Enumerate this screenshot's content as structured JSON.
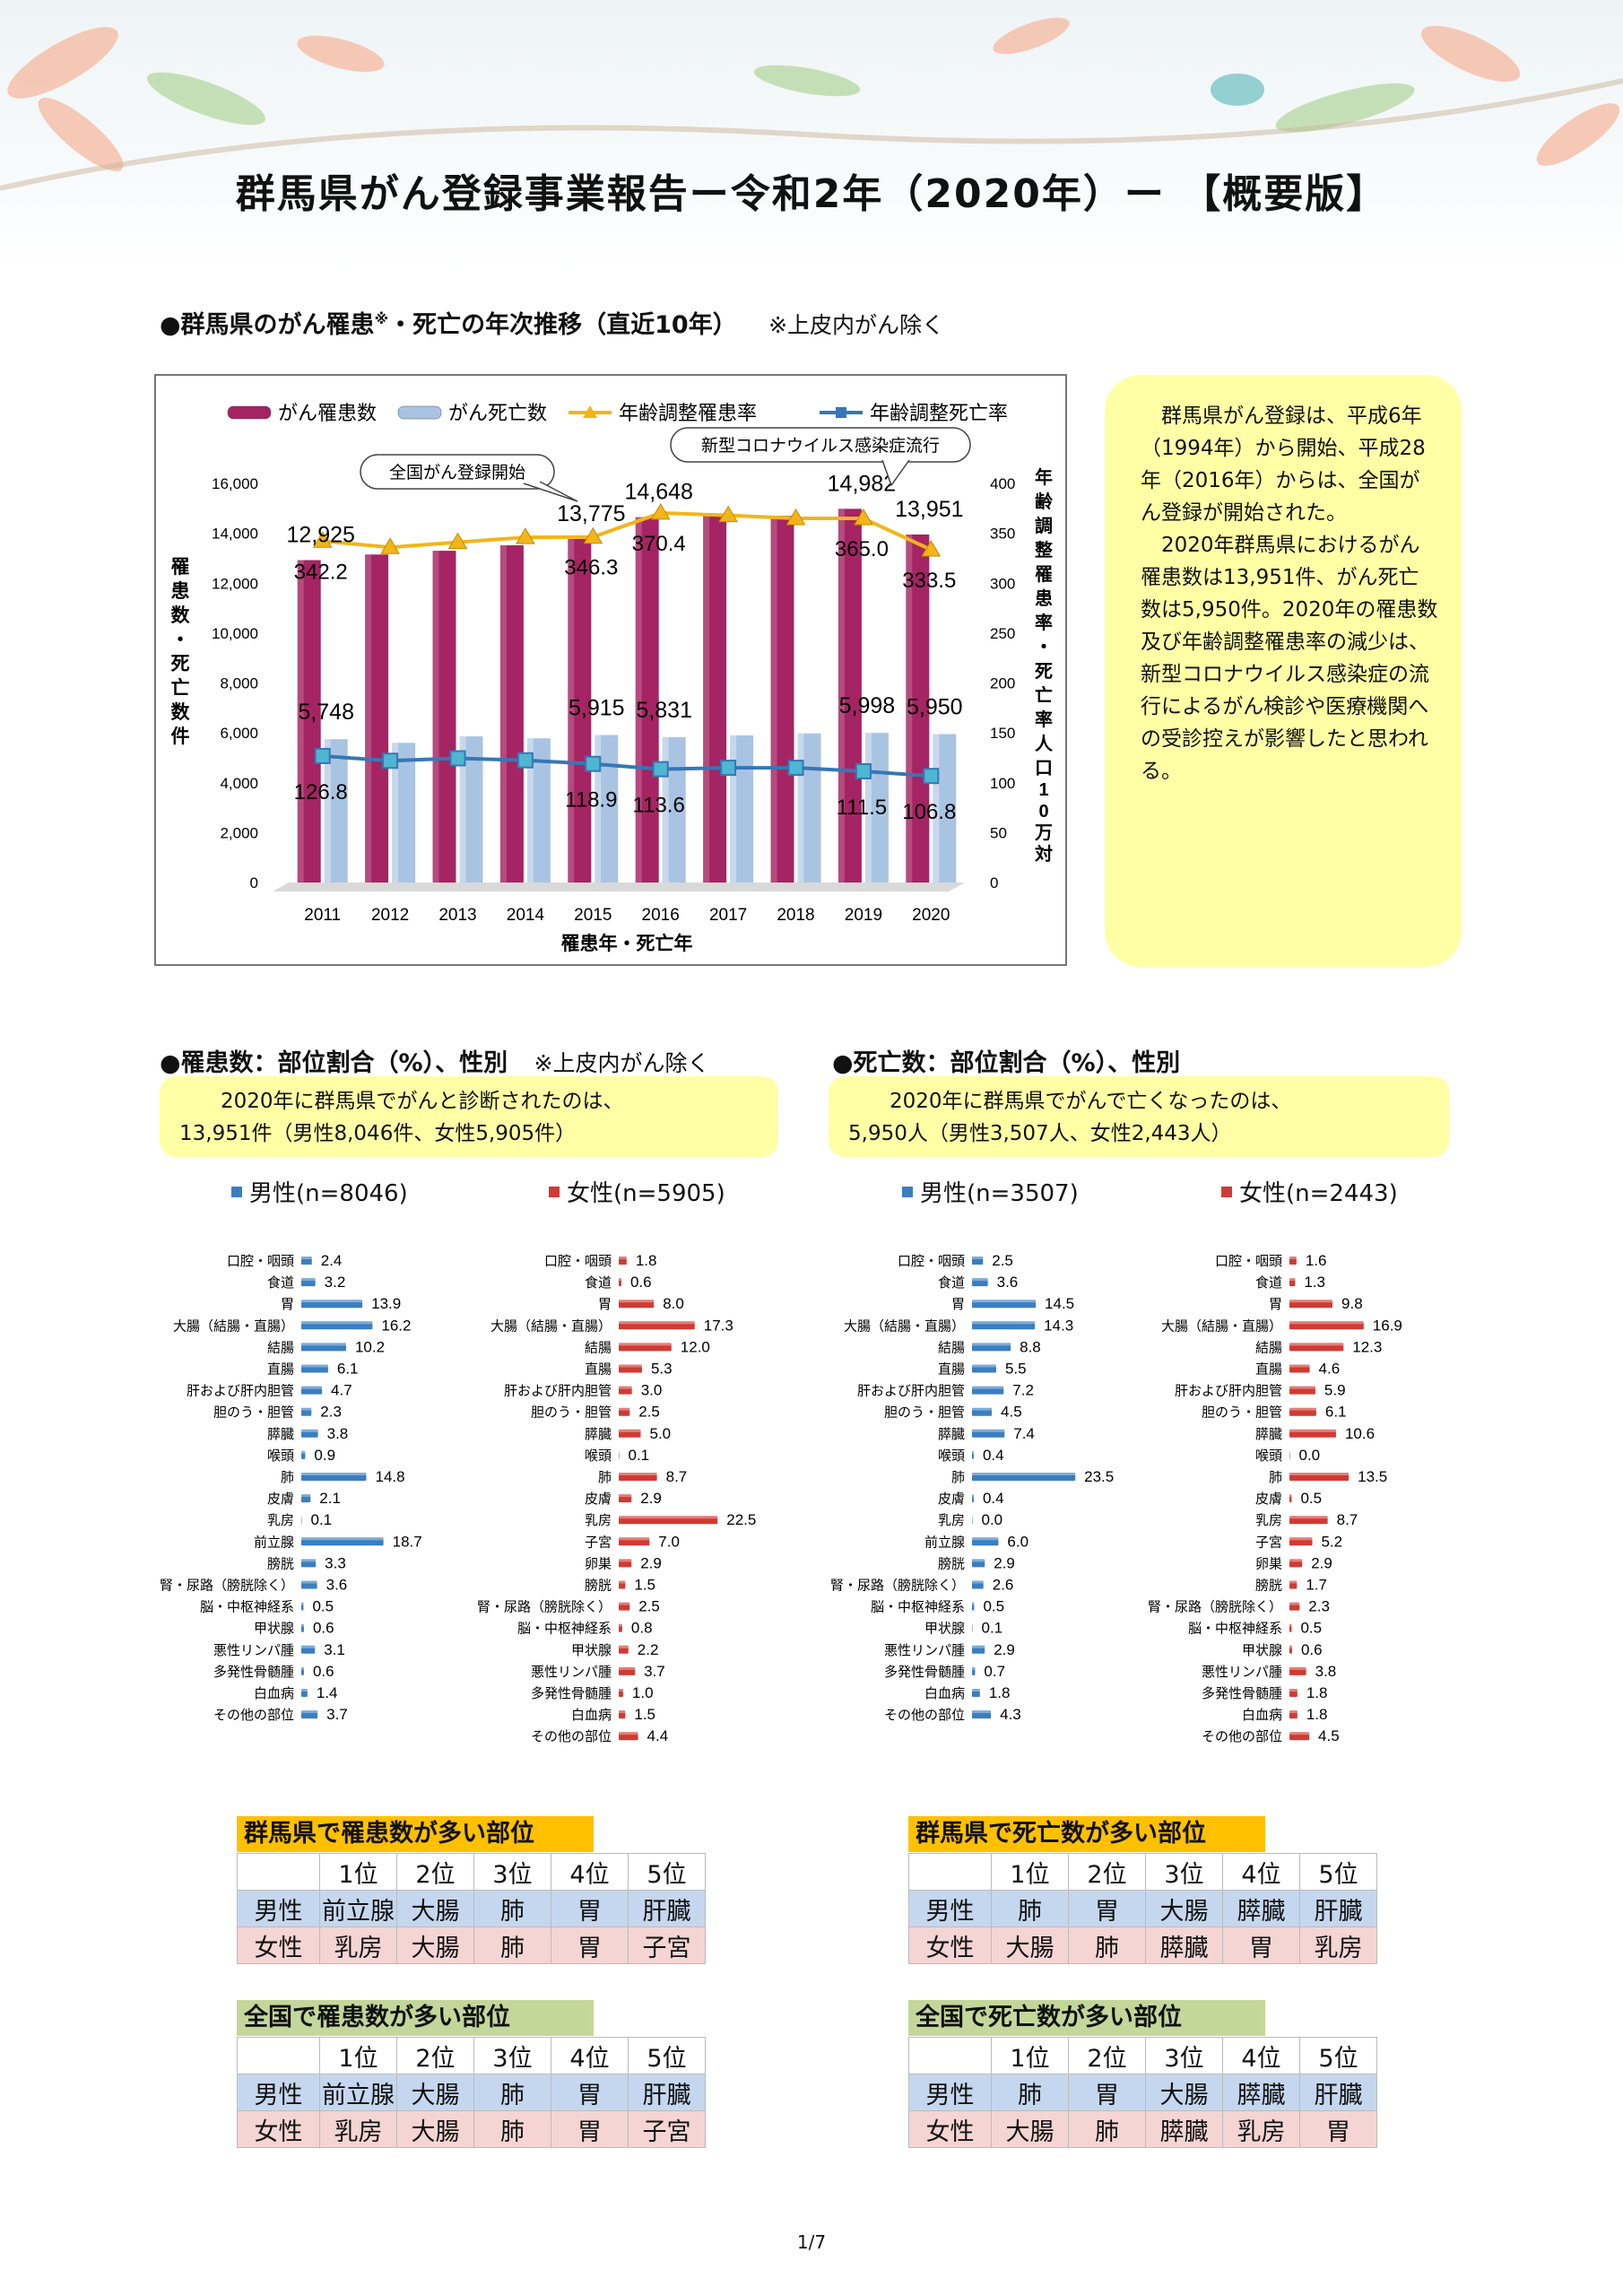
{
  "title": "群馬県がん登録事業報告ー令和2年（2020年）ー 【概要版】",
  "trend_section": {
    "heading_a": "●群馬県のがん罹患",
    "heading_sup": "※",
    "heading_b": "・死亡の年次推移（直近10年）",
    "heading_note": "※上皮内がん除く"
  },
  "colors": {
    "incidence_bar": "#a52463",
    "death_bar": "#a9c4e2",
    "age_adj_incidence": "#f2b519",
    "age_adj_death": "#3677b6",
    "male_bar": "#3a7ec2",
    "female_bar": "#d13a33",
    "note_bg": "#ffffa6",
    "rank_title_pref": "#ffc000",
    "rank_title_nat": "#c4d79b"
  },
  "side_note": {
    "p1": "群馬県がん登録は、平成6年（1994年）から開始、平成28年（2016年）からは、全国がん登録が開始された。",
    "p2": "2020年群馬県におけるがん罹患数は13,951件、がん死亡数は5,950件。2020年の罹患数及び年齢調整罹患率の減少は、新型コロナウイルス感染症の流行によるがん検診や医療機関への受診控えが影響したと思われる。"
  },
  "incidence_section": {
    "heading": "●罹患数：部位割合（%）、性別",
    "heading_note": "※上皮内がん除く",
    "callout_line1": "2020年に群馬県でがんと診断されたのは、",
    "callout_line2": "13,951件（男性8,046件、女性5,905件）",
    "legend_male": "男性(n=8046)",
    "legend_female": "女性(n=5905)"
  },
  "death_section": {
    "heading": "●死亡数：部位割合（%）、性別",
    "callout_line1": "2020年に群馬県でがんで亡くなったのは、",
    "callout_line2": "5,950人（男性3,507人、女性2,443人）",
    "legend_male": "男性(n=3507)",
    "legend_female": "女性(n=2443)"
  },
  "rank_tables": {
    "header_labels": [
      "1位",
      "2位",
      "3位",
      "4位",
      "5位"
    ],
    "male_label": "男性",
    "female_label": "女性",
    "pref_incidence": {
      "title": "群馬県で罹患数が多い部位",
      "male": [
        "前立腺",
        "大腸",
        "肺",
        "胃",
        "肝臓"
      ],
      "female": [
        "乳房",
        "大腸",
        "肺",
        "胃",
        "子宮"
      ]
    },
    "pref_death": {
      "title": "群馬県で死亡数が多い部位",
      "male": [
        "肺",
        "胃",
        "大腸",
        "膵臓",
        "肝臓"
      ],
      "female": [
        "大腸",
        "肺",
        "膵臓",
        "胃",
        "乳房"
      ]
    },
    "nat_incidence": {
      "title": "全国で罹患数が多い部位",
      "male": [
        "前立腺",
        "大腸",
        "肺",
        "胃",
        "肝臓"
      ],
      "female": [
        "乳房",
        "大腸",
        "肺",
        "胃",
        "子宮"
      ]
    },
    "nat_death": {
      "title": "全国で死亡数が多い部位",
      "male": [
        "肺",
        "胃",
        "大腸",
        "膵臓",
        "肝臓"
      ],
      "female": [
        "大腸",
        "肺",
        "膵臓",
        "乳房",
        "胃"
      ]
    }
  },
  "page_number": "1/7",
  "chart_data": [
    {
      "type": "bar",
      "categories": [
        "2011",
        "2012",
        "2013",
        "2014",
        "2015",
        "2016",
        "2017",
        "2018",
        "2019",
        "2020"
      ],
      "series": [
        {
          "name": "がん罹患数",
          "kind": "bar",
          "axis": "left",
          "values": [
            12925,
            13150,
            13300,
            13520,
            13775,
            14648,
            14780,
            14700,
            14982,
            13951
          ]
        },
        {
          "name": "がん死亡数",
          "kind": "bar",
          "axis": "left",
          "values": [
            5748,
            5600,
            5860,
            5780,
            5915,
            5831,
            5900,
            5980,
            5998,
            5950
          ]
        },
        {
          "name": "年齢調整罹患率",
          "kind": "line",
          "axis": "right",
          "values": [
            342.2,
            336,
            341,
            346,
            346.3,
            370.4,
            368,
            365,
            365.0,
            333.5
          ]
        },
        {
          "name": "年齢調整死亡率",
          "kind": "line",
          "axis": "right",
          "values": [
            126.8,
            122,
            124.5,
            122.5,
            118.9,
            113.6,
            115,
            115,
            111.5,
            106.8
          ]
        }
      ],
      "data_labels": {
        "incidence": [
          {
            "i": 0,
            "text": "12,925"
          },
          {
            "i": 4,
            "text": "13,775"
          },
          {
            "i": 5,
            "text": "14,648"
          },
          {
            "i": 8,
            "text": "14,982"
          },
          {
            "i": 9,
            "text": "13,951"
          }
        ],
        "death": [
          {
            "i": 0,
            "text": "5,748"
          },
          {
            "i": 4,
            "text": "5,915"
          },
          {
            "i": 5,
            "text": "5,831"
          },
          {
            "i": 8,
            "text": "5,998"
          },
          {
            "i": 9,
            "text": "5,950"
          }
        ],
        "inc_rate": [
          {
            "i": 0,
            "text": "342.2"
          },
          {
            "i": 4,
            "text": "346.3"
          },
          {
            "i": 5,
            "text": "370.4"
          },
          {
            "i": 8,
            "text": "365.0"
          },
          {
            "i": 9,
            "text": "333.5"
          }
        ],
        "death_rate": [
          {
            "i": 0,
            "text": "126.8"
          },
          {
            "i": 4,
            "text": "118.9"
          },
          {
            "i": 5,
            "text": "113.6"
          },
          {
            "i": 8,
            "text": "111.5"
          },
          {
            "i": 9,
            "text": "106.8"
          }
        ]
      },
      "ylim_left": [
        0,
        16000
      ],
      "ylim_right": [
        0,
        400
      ],
      "y_ticks_left": [
        "0",
        "2,000",
        "4,000",
        "6,000",
        "8,000",
        "10,000",
        "12,000",
        "14,000",
        "16,000"
      ],
      "y_ticks_right": [
        "0",
        "50",
        "100",
        "150",
        "200",
        "250",
        "300",
        "350",
        "400"
      ],
      "xlabel": "罹患年・死亡年",
      "ylabel_left": "罹患数・死亡数 件",
      "ylabel_right": "年齢調整罹患率・死亡率 人口10万対",
      "annotations": [
        {
          "text": "全国がん登録開始",
          "at": "2015"
        },
        {
          "text": "新型コロナウイルス感染症流行",
          "at": "2020"
        }
      ],
      "legend": "top"
    },
    {
      "type": "bar",
      "orientation": "horizontal",
      "title": "罹患数 部位割合（%） 男性(n=8046)",
      "categories": [
        "口腔・咽頭",
        "食道",
        "胃",
        "大腸（結腸・直腸）",
        "結腸",
        "直腸",
        "肝および肝内胆管",
        "胆のう・胆管",
        "膵臓",
        "喉頭",
        "肺",
        "皮膚",
        "乳房",
        "前立腺",
        "膀胱",
        "腎・尿路（膀胱除く）",
        "脳・中枢神経系",
        "甲状腺",
        "悪性リンパ腫",
        "多発性骨髄腫",
        "白血病",
        "その他の部位"
      ],
      "values": [
        2.4,
        3.2,
        13.9,
        16.2,
        10.2,
        6.1,
        4.7,
        2.3,
        3.8,
        0.9,
        14.8,
        2.1,
        0.1,
        18.7,
        3.3,
        3.6,
        0.5,
        0.6,
        3.1,
        0.6,
        1.4,
        3.7
      ],
      "labels": [
        "2.4",
        "3.2",
        "13.9",
        "16.2",
        "10.2",
        "6.1",
        "4.7",
        "2.3",
        "3.8",
        "0.9",
        "14.8",
        "2.1",
        "0.1",
        "18.7",
        "3.3",
        "3.6",
        "0.5",
        "0.6",
        "3.1",
        "0.6",
        "1.4",
        "3.7"
      ]
    },
    {
      "type": "bar",
      "orientation": "horizontal",
      "title": "罹患数 部位割合（%） 女性(n=5905)",
      "categories": [
        "口腔・咽頭",
        "食道",
        "胃",
        "大腸（結腸・直腸）",
        "結腸",
        "直腸",
        "肝および肝内胆管",
        "胆のう・胆管",
        "膵臓",
        "喉頭",
        "肺",
        "皮膚",
        "乳房",
        "子宮",
        "卵巣",
        "膀胱",
        "腎・尿路（膀胱除く）",
        "脳・中枢神経系",
        "甲状腺",
        "悪性リンパ腫",
        "多発性骨髄腫",
        "白血病",
        "その他の部位"
      ],
      "values": [
        1.8,
        0.6,
        8.0,
        17.3,
        12.0,
        5.3,
        3.0,
        2.5,
        5.0,
        0.1,
        8.7,
        2.9,
        22.5,
        7.0,
        2.9,
        1.5,
        2.5,
        0.8,
        2.2,
        3.7,
        1.0,
        1.5,
        4.4
      ],
      "labels": [
        "1.8",
        "0.6",
        "8.0",
        "17.3",
        "12.0",
        "5.3",
        "3.0",
        "2.5",
        "5.0",
        "0.1",
        "8.7",
        "2.9",
        "22.5",
        "7.0",
        "2.9",
        "1.5",
        "2.5",
        "0.8",
        "2.2",
        "3.7",
        "1.0",
        "1.5",
        "4.4"
      ]
    },
    {
      "type": "bar",
      "orientation": "horizontal",
      "title": "死亡数 部位割合（%） 男性(n=3507)",
      "categories": [
        "口腔・咽頭",
        "食道",
        "胃",
        "大腸（結腸・直腸）",
        "結腸",
        "直腸",
        "肝および肝内胆管",
        "胆のう・胆管",
        "膵臓",
        "喉頭",
        "肺",
        "皮膚",
        "乳房",
        "前立腺",
        "膀胱",
        "腎・尿路（膀胱除く）",
        "脳・中枢神経系",
        "甲状腺",
        "悪性リンパ腫",
        "多発性骨髄腫",
        "白血病",
        "その他の部位"
      ],
      "values": [
        2.5,
        3.6,
        14.5,
        14.3,
        8.8,
        5.5,
        7.2,
        4.5,
        7.4,
        0.4,
        23.5,
        0.4,
        0.0,
        6.0,
        2.9,
        2.6,
        0.5,
        0.1,
        2.9,
        0.7,
        1.8,
        4.3
      ],
      "labels": [
        "2.5",
        "3.6",
        "14.5",
        "14.3",
        "8.8",
        "5.5",
        "7.2",
        "4.5",
        "7.4",
        "0.4",
        "23.5",
        "0.4",
        "0.0",
        "6.0",
        "2.9",
        "2.6",
        "0.5",
        "0.1",
        "2.9",
        "0.7",
        "1.8",
        "4.3"
      ]
    },
    {
      "type": "bar",
      "orientation": "horizontal",
      "title": "死亡数 部位割合（%） 女性(n=2443)",
      "categories": [
        "口腔・咽頭",
        "食道",
        "胃",
        "大腸（結腸・直腸）",
        "結腸",
        "直腸",
        "肝および肝内胆管",
        "胆のう・胆管",
        "膵臓",
        "喉頭",
        "肺",
        "皮膚",
        "乳房",
        "子宮",
        "卵巣",
        "膀胱",
        "腎・尿路（膀胱除く）",
        "脳・中枢神経系",
        "甲状腺",
        "悪性リンパ腫",
        "多発性骨髄腫",
        "白血病",
        "その他の部位"
      ],
      "values": [
        1.6,
        1.3,
        9.8,
        16.9,
        12.3,
        4.6,
        5.9,
        6.1,
        10.6,
        0.0,
        13.5,
        0.5,
        8.7,
        5.2,
        2.9,
        1.7,
        2.3,
        0.5,
        0.6,
        3.8,
        1.8,
        1.8,
        4.5
      ],
      "labels": [
        "1.6",
        "1.3",
        "9.8",
        "16.9",
        "12.3",
        "4.6",
        "5.9",
        "6.1",
        "10.6",
        "0.0",
        "13.5",
        "0.5",
        "8.7",
        "5.2",
        "2.9",
        "1.7",
        "2.3",
        "0.5",
        "0.6",
        "3.8",
        "1.8",
        "1.8",
        "4.5"
      ]
    }
  ]
}
